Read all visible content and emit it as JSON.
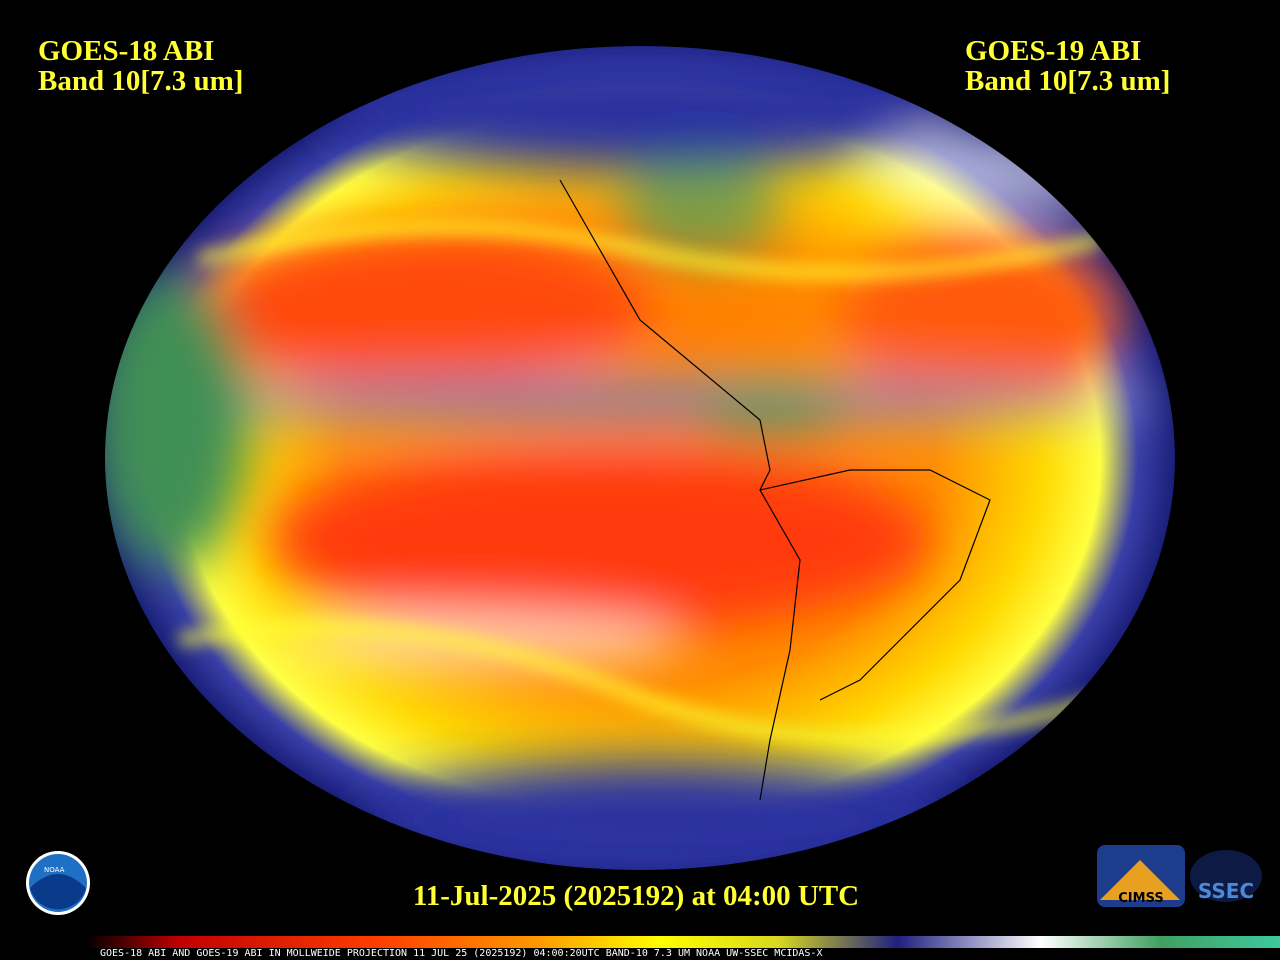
{
  "header": {
    "left": {
      "line1": "GOES-18 ABI",
      "line2": "Band 10[7.3 um]"
    },
    "right": {
      "line1": "GOES-19 ABI",
      "line2": "Band 10[7.3 um]"
    }
  },
  "timestamp": "11-Jul-2025 (2025192) at 04:00 UTC",
  "footer": "GOES-18 ABI AND GOES-19 ABI IN MOLLWEIDE PROJECTION 11 JUL 25 (2025192) 04:00:20UTC BAND-10 7.3 UM NOAA UW-SSEC MCIDAS-X",
  "logos": {
    "noaa": "NOAA",
    "cimss": "CIMSS",
    "ssec": "SSEC"
  }
}
